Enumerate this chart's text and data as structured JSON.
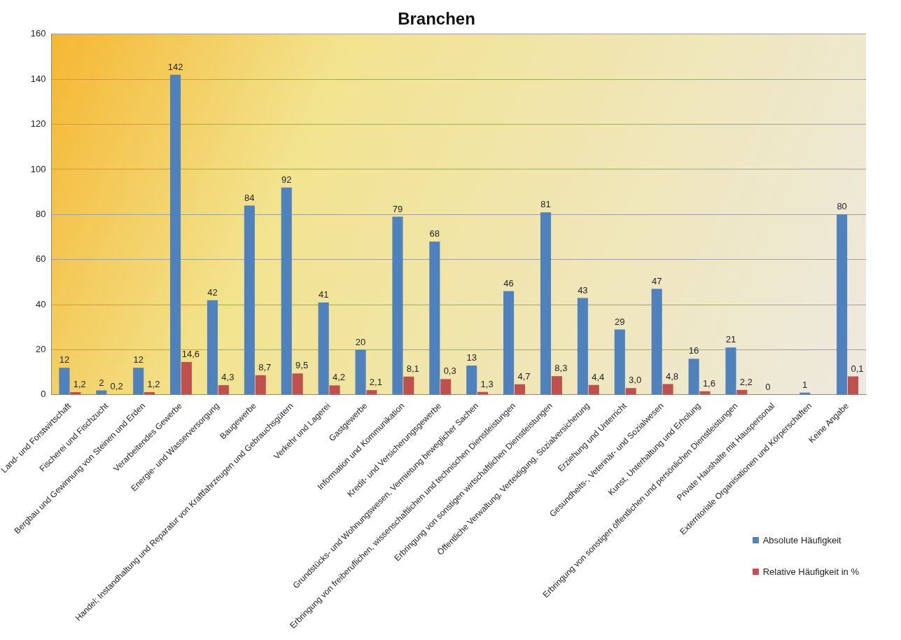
{
  "chart_data": {
    "type": "bar",
    "title": "Branchen",
    "categories": [
      "Land- und Forstwirtschaft",
      "Fischerei und Fischzucht",
      "Bergbau und Gewinnung von Steinen und Erden",
      "Verarbeitendes Gewerbe",
      "Energie- und Wasserversorgung",
      "Baugewerbe",
      "Handel; Instandhaltung und Reparatur von Kraftfahrzeugen und Gebrauchsgütern",
      "Verkehr und Lagerei",
      "Gastgewerbe",
      "Information und Kommunikation",
      "Kredit- und Versicherungsgewerbe",
      "Grundstücks- und Wohnungswesen, Vermietung beweglicher Sachen",
      "Erbringung von freiberuflichen, wissenschaftlichen und technischen Dienstleistungen",
      "Erbringung von sonstigen wirtschaftlichen Dienstleistungen",
      "Öffentliche Verwaltung, Verteidigung, Sozialversicherung",
      "Erziehung und Unterricht",
      "Gesundheits-, Veterinär- und Sozialwesen",
      "Kunst, Unterhaltung und Erholung",
      "Erbringung von sonstigen öffentlichen und persönlichen Dienstleistungen",
      "Private Haushalte mit Hauspersonal",
      "Exterritoriale Organisationen und Körperschaften",
      "Keine Angabe"
    ],
    "series": [
      {
        "name": "Absolute Häufigkeit",
        "color": "#4f81bd",
        "values": [
          12,
          2,
          12,
          142,
          42,
          84,
          92,
          41,
          20,
          79,
          68,
          13,
          46,
          81,
          43,
          29,
          47,
          16,
          21,
          0,
          1,
          80
        ],
        "value_labels": [
          "12",
          "2",
          "12",
          "142",
          "42",
          "84",
          "92",
          "41",
          "20",
          "79",
          "68",
          "13",
          "46",
          "81",
          "43",
          "29",
          "47",
          "16",
          "21",
          "0",
          "1",
          "80"
        ]
      },
      {
        "name": "Relative Häufigkeit in %",
        "color": "#c0504d",
        "values": [
          1.2,
          0.2,
          1.2,
          14.6,
          4.3,
          8.7,
          9.5,
          4.2,
          2.1,
          8.1,
          7.0,
          1.3,
          4.7,
          8.3,
          4.4,
          3.0,
          4.8,
          1.6,
          2.2,
          0,
          null,
          8.2
        ],
        "value_labels": [
          "1,2",
          "0,2",
          "1,2",
          "14,6",
          "4,3",
          "8,7",
          "9,5",
          "4,2",
          "2,1",
          "8,1",
          null,
          "1,3",
          "4,7",
          "8,3",
          "4,4",
          "3,0",
          "4,8",
          "1,6",
          "2,2",
          null,
          null,
          null
        ]
      }
    ],
    "annotations": [
      {
        "text": "0,3",
        "x": "Kredit- und Versicherungsgewerbe",
        "y": 7.0
      },
      {
        "text": "0,1",
        "x": "Keine Angabe",
        "y": 8.2
      }
    ],
    "ylim": [
      0,
      160
    ],
    "yticks": [
      0,
      20,
      40,
      60,
      80,
      100,
      120,
      140,
      160
    ],
    "grid": "y",
    "legend": "bottom right"
  }
}
